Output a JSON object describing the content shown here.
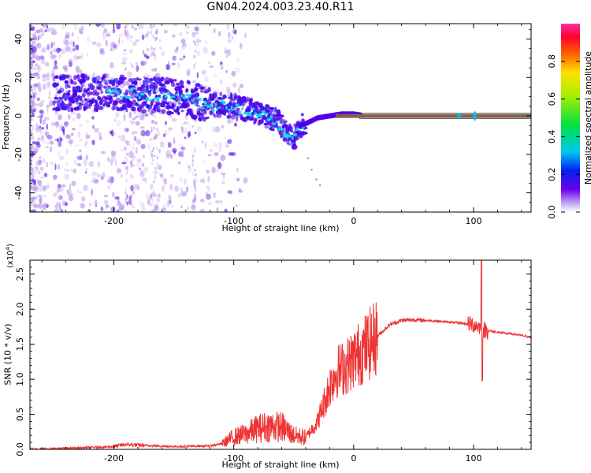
{
  "title": "GN04.2024.003.23.40.R11",
  "chart_data": [
    {
      "type": "heatmap",
      "xlabel": "Height of straight line (km)",
      "ylabel": "Frequency (Hz)",
      "xlim": [
        -270,
        148
      ],
      "ylim": [
        -50,
        48
      ],
      "xticks": [
        -200,
        -100,
        0,
        100
      ],
      "yticks": [
        -40,
        -20,
        0,
        20,
        40
      ],
      "colorbar": {
        "label": "Normalized spectral amplitude",
        "ticks": [
          0.0,
          0.2,
          0.4,
          0.6,
          0.8
        ],
        "range": [
          0,
          1
        ]
      },
      "ridge": {
        "x": [
          -230,
          -200,
          -170,
          -140,
          -120,
          -100,
          -80,
          -65,
          -55,
          -50,
          -45,
          -40,
          -30,
          -20,
          -10,
          0,
          10,
          50,
          100,
          148
        ],
        "y": [
          12,
          12,
          11,
          9,
          6,
          5,
          2,
          -2,
          -9,
          -13,
          -5,
          -4,
          -1,
          0,
          1,
          1,
          0,
          0,
          0,
          0
        ]
      },
      "colors": {
        "low": "#b28ee8",
        "mid": "#5000e8",
        "high": "#00e8e0",
        "peak": "#ff2244",
        "line": "#00aa55"
      }
    },
    {
      "type": "line",
      "xlabel": "Height of straight line (km)",
      "ylabel": "SNR (10 * v/v)",
      "yscale_label": "(x10",
      "yscale_exp": "4",
      "xlim": [
        -270,
        148
      ],
      "ylim": [
        0,
        2.7
      ],
      "xticks": [
        -200,
        -100,
        0,
        100
      ],
      "yticks": [
        0.0,
        0.5,
        1.0,
        1.5,
        2.0,
        2.5
      ],
      "series": [
        {
          "color": "#ee3333",
          "x": [
            -270,
            -230,
            -200,
            -190,
            -180,
            -150,
            -120,
            -110,
            -100,
            -90,
            -80,
            -70,
            -60,
            -50,
            -40,
            -30,
            -20,
            -15,
            -10,
            -5,
            0,
            10,
            20,
            30,
            40,
            50,
            70,
            90,
            100,
            105,
            107,
            110,
            120,
            135,
            148
          ],
          "y": [
            0.0,
            0.02,
            0.04,
            0.07,
            0.06,
            0.04,
            0.05,
            0.08,
            0.18,
            0.22,
            0.3,
            0.33,
            0.32,
            0.2,
            0.17,
            0.4,
            0.9,
            1.1,
            1.15,
            1.2,
            1.3,
            1.45,
            1.62,
            1.78,
            1.84,
            1.85,
            1.83,
            1.8,
            1.78,
            1.75,
            1.7,
            1.7,
            1.67,
            1.64,
            1.6
          ]
        }
      ]
    }
  ]
}
